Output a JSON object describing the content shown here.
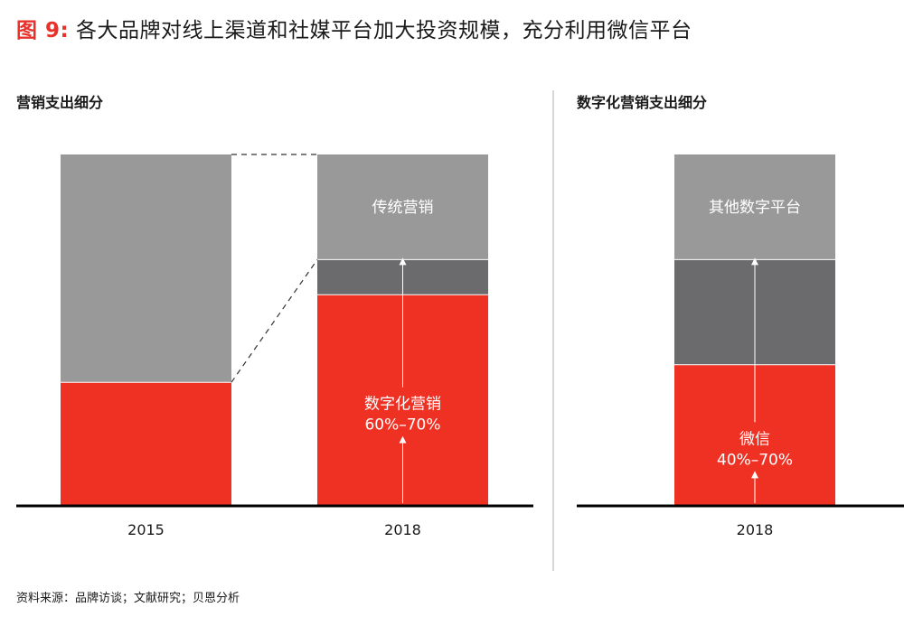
{
  "header": {
    "fig_label": "图 9:",
    "title": "各大品牌对线上渠道和社媒平台加大投资规模，充分利用微信平台"
  },
  "footer": {
    "source": "资料来源：品牌访谈；文献研究；贝恩分析"
  },
  "colors": {
    "red": "#ef3124",
    "gray": "#999999",
    "dark_gray": "#6b6b6d",
    "divider": "#d6d6d6"
  },
  "chart_data": [
    {
      "type": "bar",
      "stacked": true,
      "title": "营销支出细分",
      "categories": [
        "2015",
        "2018"
      ],
      "series": [
        {
          "name": "数字化营销",
          "values": [
            35,
            60
          ],
          "range_label": "60%–70%",
          "color": "#ef3124"
        },
        {
          "name": "",
          "values": [
            0,
            10
          ],
          "color": "#6b6b6d"
        },
        {
          "name": "传统营销",
          "values": [
            65,
            30
          ],
          "color": "#999999"
        }
      ],
      "ylim": [
        0,
        100
      ],
      "grid": false,
      "legend": "none"
    },
    {
      "type": "bar",
      "stacked": true,
      "title": "数字化营销支出细分",
      "categories": [
        "2018"
      ],
      "series": [
        {
          "name": "微信",
          "values": [
            40
          ],
          "range_label": "40%–70%",
          "color": "#ef3124"
        },
        {
          "name": "",
          "values": [
            30
          ],
          "color": "#6b6b6d"
        },
        {
          "name": "其他数字平台",
          "values": [
            30
          ],
          "color": "#999999"
        }
      ],
      "ylim": [
        0,
        100
      ],
      "grid": false,
      "legend": "none"
    }
  ]
}
